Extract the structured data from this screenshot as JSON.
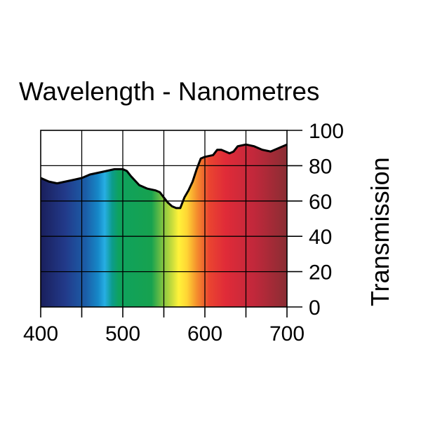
{
  "chart_data": {
    "type": "area",
    "title": "Wavelength - Nanometres",
    "xlabel": "",
    "ylabel": "Transmission",
    "xlim": [
      400,
      700
    ],
    "ylim": [
      0,
      100
    ],
    "x_ticks": [
      400,
      500,
      600,
      700
    ],
    "y_ticks": [
      0,
      20,
      40,
      60,
      80,
      100
    ],
    "grid": true,
    "fill": "visible spectrum",
    "series": [
      {
        "name": "Transmission",
        "x": [
          400,
          410,
          420,
          430,
          440,
          450,
          460,
          470,
          480,
          490,
          500,
          505,
          510,
          520,
          530,
          540,
          545,
          550,
          555,
          560,
          565,
          570,
          575,
          580,
          585,
          590,
          595,
          600,
          610,
          615,
          620,
          625,
          630,
          635,
          640,
          650,
          660,
          670,
          680,
          690,
          700
        ],
        "values": [
          73,
          71,
          70,
          71,
          72,
          73,
          75,
          76,
          77,
          78,
          78,
          77,
          74,
          69,
          67,
          66,
          65,
          62,
          59,
          57,
          56,
          56,
          62,
          66,
          71,
          78,
          84,
          85,
          86,
          89,
          89,
          88,
          87,
          88,
          91,
          92,
          91,
          89,
          88,
          90,
          92
        ]
      }
    ],
    "spectrum_colors": [
      {
        "nm": 400,
        "color": "#1a1f5c"
      },
      {
        "nm": 430,
        "color": "#223a8a"
      },
      {
        "nm": 455,
        "color": "#1b5ea8"
      },
      {
        "nm": 470,
        "color": "#1688c8"
      },
      {
        "nm": 478,
        "color": "#27aee3"
      },
      {
        "nm": 487,
        "color": "#0c9c8c"
      },
      {
        "nm": 495,
        "color": "#0ea25e"
      },
      {
        "nm": 535,
        "color": "#17a24f"
      },
      {
        "nm": 548,
        "color": "#7cc242"
      },
      {
        "nm": 560,
        "color": "#c8dc3c"
      },
      {
        "nm": 568,
        "color": "#fff23a"
      },
      {
        "nm": 578,
        "color": "#ffd634"
      },
      {
        "nm": 590,
        "color": "#f5902d"
      },
      {
        "nm": 605,
        "color": "#ea4530"
      },
      {
        "nm": 625,
        "color": "#e02b38"
      },
      {
        "nm": 660,
        "color": "#c1283b"
      },
      {
        "nm": 700,
        "color": "#8a2d33"
      }
    ],
    "line_color": "#000000",
    "grid_color": "#000000"
  }
}
